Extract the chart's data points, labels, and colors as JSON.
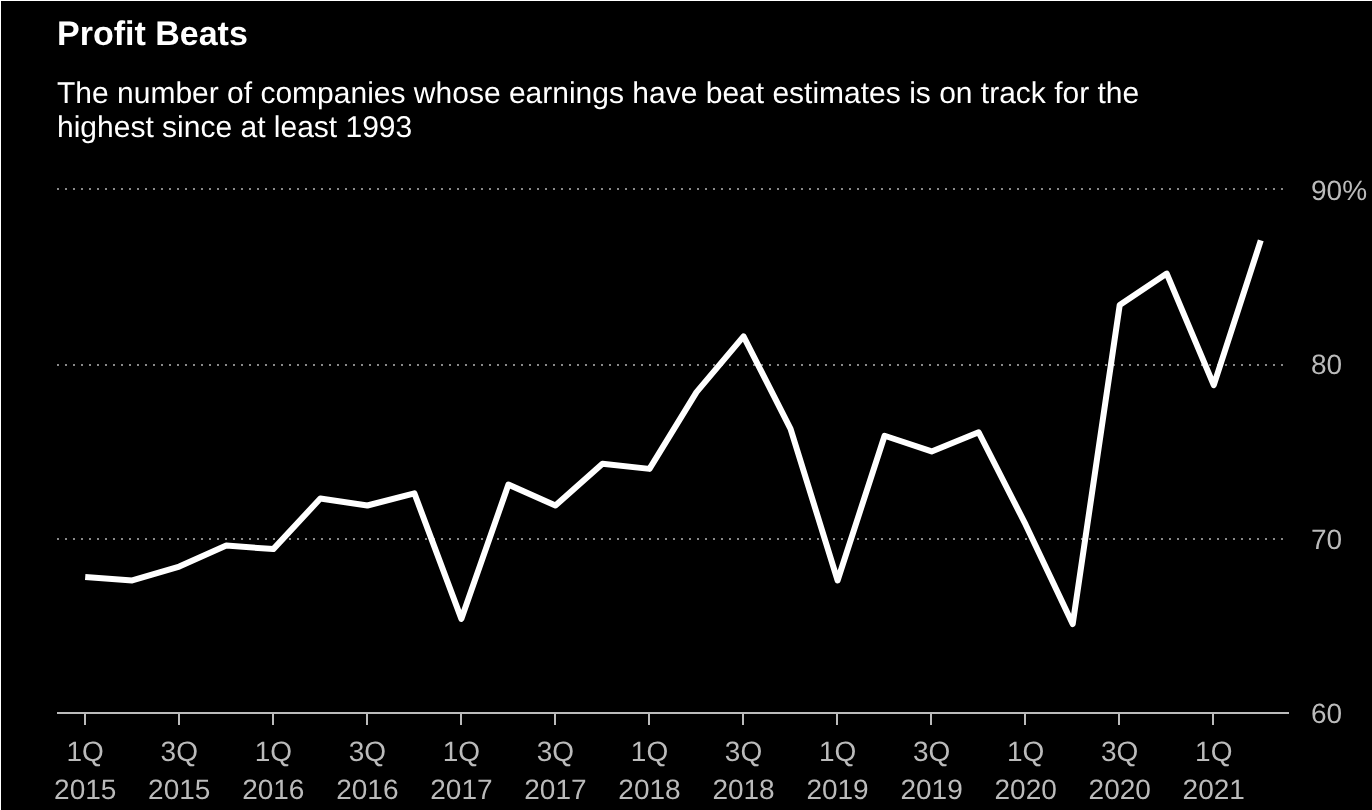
{
  "chart_data": {
    "type": "line",
    "title": "Profit Beats",
    "subtitle": "The number of companies whose earnings have beat estimates is on track for the highest since at least 1993",
    "categories": [
      "1Q\n2015",
      null,
      "3Q\n2015",
      null,
      "1Q\n2016",
      null,
      "3Q\n2016",
      null,
      "1Q\n2017",
      null,
      "3Q\n2017",
      null,
      "1Q\n2018",
      null,
      "3Q\n2018",
      null,
      "1Q\n2019",
      null,
      "3Q\n2019",
      null,
      "1Q\n2020",
      null,
      "3Q\n2020",
      null,
      "1Q\n2021",
      null
    ],
    "series": [
      {
        "color": "#ffffff",
        "values": [
          67.8,
          67.6,
          68.4,
          69.6,
          69.4,
          72.3,
          71.9,
          72.6,
          65.4,
          73.1,
          71.9,
          74.3,
          74.0,
          78.4,
          81.6,
          76.3,
          67.6,
          75.9,
          75.0,
          76.1,
          70.8,
          65.1,
          83.4,
          85.2,
          78.8,
          87.1
        ]
      }
    ],
    "ylim": [
      60,
      92
    ],
    "yticks": [
      60,
      70,
      80,
      {
        "value": 90,
        "label": "90%"
      }
    ],
    "grid": "y",
    "marker": "none",
    "line_style": "solid"
  }
}
